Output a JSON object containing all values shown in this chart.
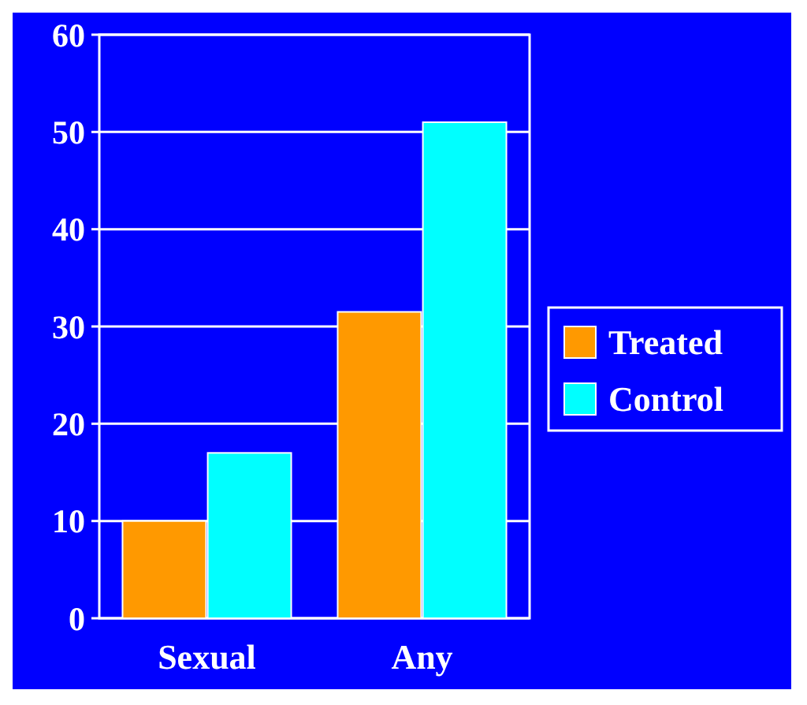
{
  "chart_data": {
    "type": "bar",
    "categories": [
      "Sexual",
      "Any"
    ],
    "series": [
      {
        "name": "Treated",
        "color": "#ff9900",
        "values": [
          10,
          31.5
        ]
      },
      {
        "name": "Control",
        "color": "#00ffff",
        "values": [
          17,
          51
        ]
      }
    ],
    "ylim": [
      0,
      60
    ],
    "yticks": [
      0,
      10,
      20,
      30,
      40,
      50,
      60
    ],
    "grid": "y",
    "legend": "right"
  }
}
